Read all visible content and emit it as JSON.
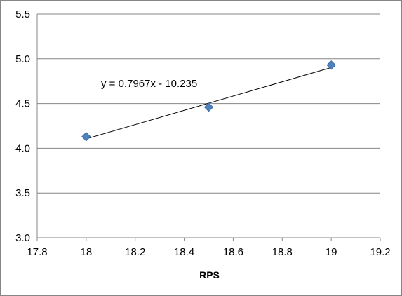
{
  "chart_data": {
    "type": "scatter",
    "title": "",
    "xlabel": "RPS",
    "ylabel": "",
    "xlim": [
      17.8,
      19.2
    ],
    "ylim": [
      3.0,
      5.5
    ],
    "x_ticks": [
      17.8,
      18,
      18.2,
      18.4,
      18.6,
      18.8,
      19,
      19.2
    ],
    "x_tick_labels": [
      "17.8",
      "18",
      "18.2",
      "18.4",
      "18.6",
      "18.8",
      "19",
      "19.2"
    ],
    "y_ticks": [
      3.0,
      3.5,
      4.0,
      4.5,
      5.0,
      5.5
    ],
    "y_tick_labels": [
      "3.0",
      "3.5",
      "4.0",
      "4.5",
      "5.0",
      "5.5"
    ],
    "grid": "horizontal",
    "legend": "none",
    "series": [
      {
        "points": [
          {
            "x": 18,
            "y": 4.13
          },
          {
            "x": 18.5,
            "y": 4.46
          },
          {
            "x": 19,
            "y": 4.93
          }
        ],
        "marker": "diamond",
        "color": "#4F81BD"
      }
    ],
    "trendline": {
      "type": "linear",
      "slope": 0.7967,
      "intercept": -10.235,
      "x_range": [
        18,
        19
      ],
      "color": "#000000"
    },
    "annotations": [
      {
        "text": "y = 0.7967x - 10.235"
      }
    ]
  }
}
